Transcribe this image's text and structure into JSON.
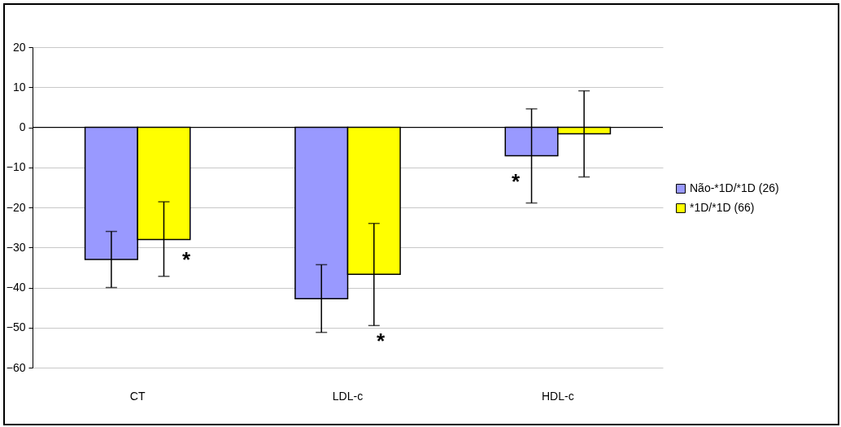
{
  "chart_data": {
    "type": "bar",
    "categories": [
      "CT",
      "LDL-c",
      "HDL-c"
    ],
    "series": [
      {
        "name": "Não-*1D/*1D (26)",
        "color": "#9999ff",
        "values": [
          -33,
          -42.8,
          -7.1
        ],
        "errors": [
          [
            -40,
            -26
          ],
          [
            -51.2,
            -34.3
          ],
          [
            -18.9,
            4.6
          ]
        ]
      },
      {
        "name": "*1D/*1D (66)",
        "color": "#ffff00",
        "values": [
          -28,
          -36.7,
          -1.6
        ],
        "errors": [
          [
            -37.2,
            -18.6
          ],
          [
            -49.5,
            -24
          ],
          [
            -12.4,
            9.1
          ]
        ]
      }
    ],
    "annotations": [
      "*",
      "*",
      "*"
    ],
    "ylim": [
      -60,
      20
    ],
    "yticks": [
      -60,
      -50,
      -40,
      -30,
      -20,
      -10,
      0,
      10,
      20
    ],
    "grid": "y",
    "legend": "right"
  }
}
